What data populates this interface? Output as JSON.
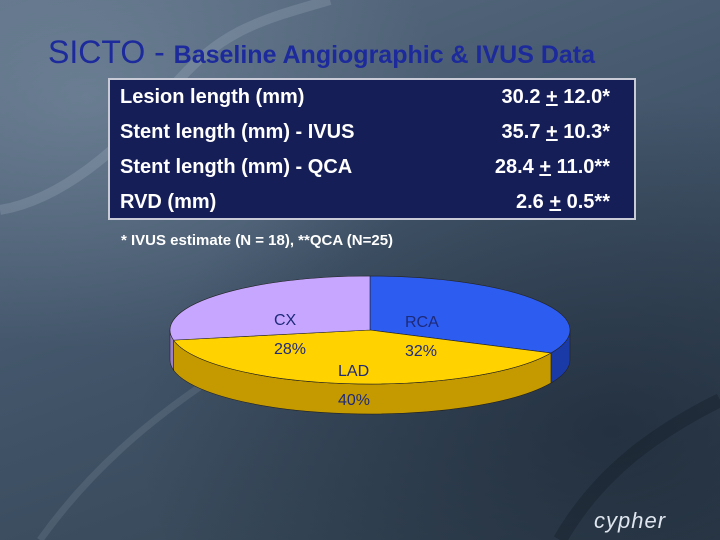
{
  "slide": {
    "title_main": "SICTO - ",
    "title_sub": "Baseline Angiographic & IVUS Data"
  },
  "table": {
    "rows": [
      {
        "label": "Lesion length (mm)",
        "value_main": "30.2",
        "value_pm": "+",
        "value_rest": "12.0*"
      },
      {
        "label": "Stent length (mm) - IVUS",
        "value_main": "35.7",
        "value_pm": "+",
        "value_rest": "10.3*"
      },
      {
        "label": "Stent length (mm) - QCA",
        "value_main": "28.4",
        "value_pm": "+",
        "value_rest": "11.0**"
      },
      {
        "label": "RVD (mm)",
        "value_main": "2.6",
        "value_pm": "+",
        "value_rest": "0.5**"
      }
    ]
  },
  "footnote": "* IVUS estimate (N = 18), **QCA (N=25)",
  "chart_data": {
    "type": "pie",
    "slices": [
      {
        "name": "RCA",
        "label": "32%",
        "value": 32,
        "color": "#2d5cf0",
        "side_color": "#1a3aa8"
      },
      {
        "name": "LAD",
        "label": "40%",
        "value": 40,
        "color": "#ffd200",
        "side_color": "#c49a00"
      },
      {
        "name": "CX",
        "label": "28%",
        "value": 28,
        "color": "#c7a6ff",
        "side_color": "#9a80cc"
      }
    ]
  },
  "logo": {
    "text": "cypher",
    "icon": "cypher-logo"
  }
}
